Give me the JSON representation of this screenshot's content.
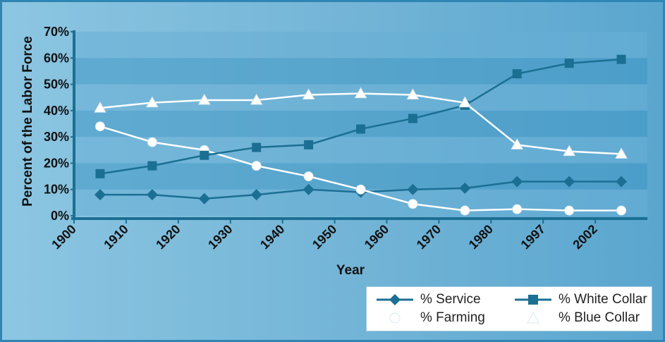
{
  "chart_data": {
    "type": "line",
    "xlabel": "Year",
    "ylabel": "Percent of the Labor Force",
    "x_ticks": [
      "1900",
      "1910",
      "1920",
      "1930",
      "1940",
      "1950",
      "1960",
      "1970",
      "1980",
      "1997",
      "2002"
    ],
    "categories": [
      "1905",
      "1915",
      "1925",
      "1935",
      "1945",
      "1955",
      "1965",
      "1975",
      "1985",
      "1995",
      "2005"
    ],
    "y_ticks": [
      "0%",
      "10%",
      "20%",
      "30%",
      "40%",
      "50%",
      "60%",
      "70%"
    ],
    "ylim": [
      0,
      70
    ],
    "grid": "horizontal bands",
    "legend_position": "bottom-right",
    "series": [
      {
        "name": "% Service",
        "marker": "diamond",
        "color": "#1b6f93",
        "values": [
          8,
          8,
          6.5,
          8,
          10,
          9,
          10,
          10.5,
          13,
          13,
          13
        ]
      },
      {
        "name": "% Farming",
        "marker": "circle",
        "color": "#ffffff",
        "values": [
          34,
          28,
          25,
          19,
          15,
          10,
          4.5,
          2,
          2.5,
          2,
          2
        ]
      },
      {
        "name": "% White Collar",
        "marker": "square",
        "color": "#1b6f93",
        "values": [
          16,
          19,
          23,
          26,
          27,
          33,
          37,
          42,
          54,
          58,
          59.5
        ]
      },
      {
        "name": "% Blue Collar",
        "marker": "triangle",
        "color": "#ffffff",
        "values": [
          41,
          43,
          44,
          44,
          46,
          46.5,
          46,
          43,
          27,
          24.5,
          23.5
        ]
      }
    ]
  }
}
